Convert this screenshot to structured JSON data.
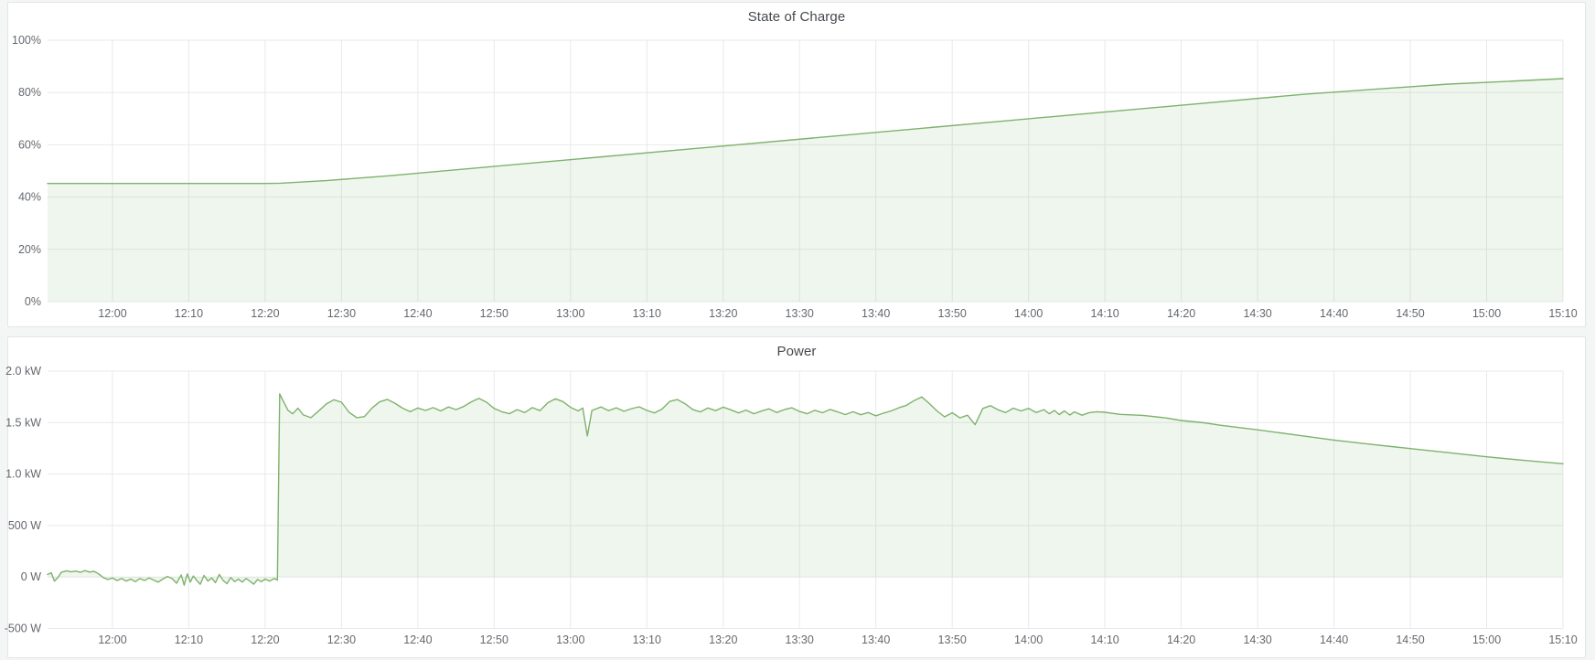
{
  "style": {
    "page_background": "#f4f5f5",
    "panel_background": "#ffffff",
    "panel_border": "#e3e5e7",
    "title_color": "#45494e",
    "tick_color": "#64686e",
    "grid_color": "#e8e9ea",
    "series_green": "#7eb26d",
    "series_fill": "rgba(126,178,109,0.12)"
  },
  "chart_data": [
    {
      "type": "area",
      "title": "State of Charge",
      "line_color": "#7eb26d",
      "fill_color": "rgba(126,178,109,0.12)",
      "fill_baseline": 0,
      "ylim": [
        0,
        100
      ],
      "x_start_min": 711.5,
      "x_end_min": 910,
      "x_tick_start_min": 720,
      "x_tick_interval_min": 10,
      "x_tick_labels": [
        "12:00",
        "12:10",
        "12:20",
        "12:30",
        "12:40",
        "12:50",
        "13:00",
        "13:10",
        "13:20",
        "13:30",
        "13:40",
        "13:50",
        "14:00",
        "14:10",
        "14:20",
        "14:30",
        "14:40",
        "14:50",
        "15:00",
        "15:10"
      ],
      "y_ticks": [
        {
          "value": 0,
          "label": "0%"
        },
        {
          "value": 20,
          "label": "20%"
        },
        {
          "value": 40,
          "label": "40%"
        },
        {
          "value": 60,
          "label": "60%"
        },
        {
          "value": 80,
          "label": "80%"
        },
        {
          "value": 100,
          "label": "100%"
        }
      ],
      "points": [
        [
          711.5,
          45.2
        ],
        [
          740,
          45.2
        ],
        [
          742,
          45.3
        ],
        [
          748,
          46.3
        ],
        [
          756,
          48.1
        ],
        [
          776,
          53.3
        ],
        [
          796,
          58.5
        ],
        [
          816,
          63.7
        ],
        [
          836,
          68.9
        ],
        [
          856,
          74.1
        ],
        [
          876,
          79.3
        ],
        [
          885,
          81.2
        ],
        [
          895,
          83.2
        ],
        [
          903,
          84.3
        ],
        [
          910,
          85.3
        ]
      ]
    },
    {
      "type": "area",
      "title": "Power",
      "line_color": "#7eb26d",
      "fill_color": "rgba(126,178,109,0.12)",
      "fill_baseline": 0,
      "ylim": [
        -500,
        2000
      ],
      "x_start_min": 711.5,
      "x_end_min": 910,
      "x_tick_start_min": 720,
      "x_tick_interval_min": 10,
      "x_tick_labels": [
        "12:00",
        "12:10",
        "12:20",
        "12:30",
        "12:40",
        "12:50",
        "13:00",
        "13:10",
        "13:20",
        "13:30",
        "13:40",
        "13:50",
        "14:00",
        "14:10",
        "14:20",
        "14:30",
        "14:40",
        "14:50",
        "15:00",
        "15:10"
      ],
      "y_ticks": [
        {
          "value": -500,
          "label": "-500 W"
        },
        {
          "value": 0,
          "label": "0 W"
        },
        {
          "value": 500,
          "label": "500 W"
        },
        {
          "value": 1000,
          "label": "1.0 kW"
        },
        {
          "value": 1500,
          "label": "1.5 kW"
        },
        {
          "value": 2000,
          "label": "2.0 kW"
        }
      ],
      "points": [
        [
          711.5,
          25
        ],
        [
          712,
          40
        ],
        [
          712.4,
          -40
        ],
        [
          712.8,
          -10
        ],
        [
          713.3,
          45
        ],
        [
          714,
          60
        ],
        [
          714.6,
          50
        ],
        [
          715.2,
          58
        ],
        [
          715.8,
          45
        ],
        [
          716.4,
          62
        ],
        [
          717,
          48
        ],
        [
          717.6,
          55
        ],
        [
          718.2,
          30
        ],
        [
          718.8,
          -5
        ],
        [
          719.4,
          -25
        ],
        [
          720,
          -10
        ],
        [
          720.6,
          -35
        ],
        [
          721.2,
          -15
        ],
        [
          721.8,
          -40
        ],
        [
          722.4,
          -20
        ],
        [
          723,
          -45
        ],
        [
          723.6,
          -15
        ],
        [
          724.2,
          -35
        ],
        [
          724.8,
          -10
        ],
        [
          725.4,
          -30
        ],
        [
          726,
          -50
        ],
        [
          726.6,
          -20
        ],
        [
          727.2,
          5
        ],
        [
          727.8,
          -15
        ],
        [
          728.4,
          -60
        ],
        [
          729,
          20
        ],
        [
          729.4,
          -80
        ],
        [
          729.8,
          30
        ],
        [
          730.2,
          -50
        ],
        [
          730.6,
          10
        ],
        [
          731,
          -30
        ],
        [
          731.5,
          -70
        ],
        [
          732,
          15
        ],
        [
          732.5,
          -40
        ],
        [
          733,
          -10
        ],
        [
          733.5,
          -55
        ],
        [
          734,
          25
        ],
        [
          734.5,
          -35
        ],
        [
          735,
          -65
        ],
        [
          735.5,
          -5
        ],
        [
          736,
          -45
        ],
        [
          736.5,
          -20
        ],
        [
          737,
          -50
        ],
        [
          737.5,
          -15
        ],
        [
          738,
          -40
        ],
        [
          738.5,
          -70
        ],
        [
          739,
          -25
        ],
        [
          739.5,
          -45
        ],
        [
          740,
          -20
        ],
        [
          740.6,
          -40
        ],
        [
          741.2,
          -15
        ],
        [
          741.6,
          -30
        ],
        [
          741.9,
          1780
        ],
        [
          742.5,
          1690
        ],
        [
          743,
          1620
        ],
        [
          743.6,
          1585
        ],
        [
          744.3,
          1640
        ],
        [
          745,
          1575
        ],
        [
          746,
          1548
        ],
        [
          747,
          1612
        ],
        [
          748,
          1680
        ],
        [
          749,
          1722
        ],
        [
          750,
          1698
        ],
        [
          751,
          1600
        ],
        [
          752,
          1548
        ],
        [
          753,
          1558
        ],
        [
          754,
          1642
        ],
        [
          755,
          1702
        ],
        [
          756,
          1726
        ],
        [
          757,
          1688
        ],
        [
          758,
          1640
        ],
        [
          759,
          1606
        ],
        [
          760,
          1642
        ],
        [
          761,
          1618
        ],
        [
          762,
          1646
        ],
        [
          763,
          1614
        ],
        [
          764,
          1652
        ],
        [
          765,
          1626
        ],
        [
          766,
          1656
        ],
        [
          767,
          1702
        ],
        [
          768,
          1736
        ],
        [
          769,
          1698
        ],
        [
          770,
          1638
        ],
        [
          771,
          1606
        ],
        [
          772,
          1586
        ],
        [
          773,
          1626
        ],
        [
          774,
          1598
        ],
        [
          775,
          1646
        ],
        [
          776,
          1616
        ],
        [
          777,
          1692
        ],
        [
          778,
          1732
        ],
        [
          779,
          1704
        ],
        [
          780,
          1648
        ],
        [
          781,
          1614
        ],
        [
          781.6,
          1642
        ],
        [
          782.2,
          1370
        ],
        [
          782.8,
          1618
        ],
        [
          784,
          1652
        ],
        [
          785,
          1616
        ],
        [
          786,
          1644
        ],
        [
          787,
          1610
        ],
        [
          788,
          1636
        ],
        [
          789,
          1654
        ],
        [
          790,
          1618
        ],
        [
          791,
          1594
        ],
        [
          792,
          1632
        ],
        [
          793,
          1706
        ],
        [
          794,
          1724
        ],
        [
          795,
          1684
        ],
        [
          796,
          1628
        ],
        [
          797,
          1604
        ],
        [
          798,
          1642
        ],
        [
          799,
          1616
        ],
        [
          800,
          1650
        ],
        [
          801,
          1624
        ],
        [
          802,
          1594
        ],
        [
          803,
          1622
        ],
        [
          804,
          1586
        ],
        [
          805,
          1612
        ],
        [
          806,
          1634
        ],
        [
          807,
          1598
        ],
        [
          808,
          1626
        ],
        [
          809,
          1644
        ],
        [
          810,
          1608
        ],
        [
          811,
          1586
        ],
        [
          812,
          1620
        ],
        [
          813,
          1596
        ],
        [
          814,
          1628
        ],
        [
          815,
          1604
        ],
        [
          816,
          1578
        ],
        [
          817,
          1606
        ],
        [
          818,
          1576
        ],
        [
          819,
          1598
        ],
        [
          820,
          1566
        ],
        [
          821,
          1592
        ],
        [
          822,
          1614
        ],
        [
          823,
          1644
        ],
        [
          824,
          1668
        ],
        [
          825,
          1714
        ],
        [
          826,
          1750
        ],
        [
          827,
          1686
        ],
        [
          828,
          1614
        ],
        [
          829,
          1556
        ],
        [
          830,
          1596
        ],
        [
          831,
          1546
        ],
        [
          832,
          1572
        ],
        [
          833,
          1480
        ],
        [
          834,
          1638
        ],
        [
          835,
          1664
        ],
        [
          836,
          1624
        ],
        [
          837,
          1598
        ],
        [
          838,
          1640
        ],
        [
          839,
          1614
        ],
        [
          840,
          1638
        ],
        [
          841,
          1598
        ],
        [
          842,
          1626
        ],
        [
          842.7,
          1586
        ],
        [
          843.4,
          1618
        ],
        [
          844,
          1578
        ],
        [
          844.7,
          1614
        ],
        [
          845.4,
          1574
        ],
        [
          846,
          1604
        ],
        [
          847,
          1572
        ],
        [
          848,
          1598
        ],
        [
          849,
          1606
        ],
        [
          850,
          1600
        ],
        [
          852,
          1580
        ],
        [
          855,
          1570
        ],
        [
          858,
          1545
        ],
        [
          860,
          1520
        ],
        [
          863,
          1498
        ],
        [
          865,
          1475
        ],
        [
          870,
          1430
        ],
        [
          875,
          1380
        ],
        [
          880,
          1330
        ],
        [
          885,
          1288
        ],
        [
          890,
          1248
        ],
        [
          895,
          1208
        ],
        [
          900,
          1168
        ],
        [
          905,
          1132
        ],
        [
          910,
          1100
        ]
      ]
    }
  ]
}
